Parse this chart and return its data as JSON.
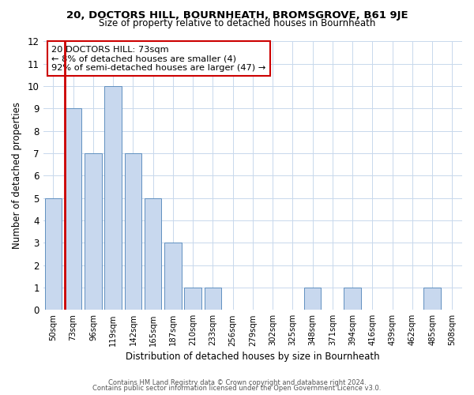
{
  "title": "20, DOCTORS HILL, BOURNHEATH, BROMSGROVE, B61 9JE",
  "subtitle": "Size of property relative to detached houses in Bournheath",
  "xlabel": "Distribution of detached houses by size in Bournheath",
  "ylabel": "Number of detached properties",
  "bar_labels": [
    "50sqm",
    "73sqm",
    "96sqm",
    "119sqm",
    "142sqm",
    "165sqm",
    "187sqm",
    "210sqm",
    "233sqm",
    "256sqm",
    "279sqm",
    "302sqm",
    "325sqm",
    "348sqm",
    "371sqm",
    "394sqm",
    "416sqm",
    "439sqm",
    "462sqm",
    "485sqm",
    "508sqm"
  ],
  "bar_values": [
    5,
    9,
    7,
    10,
    7,
    5,
    3,
    1,
    1,
    0,
    0,
    0,
    0,
    1,
    0,
    1,
    0,
    0,
    0,
    1,
    0
  ],
  "highlight_index": 1,
  "red_line_color": "#cc0000",
  "bar_fill_color": "#c8d8ee",
  "bar_edge_color": "#6090c0",
  "annotation_title": "20 DOCTORS HILL: 73sqm",
  "annotation_line1": "← 8% of detached houses are smaller (4)",
  "annotation_line2": "92% of semi-detached houses are larger (47) →",
  "ylim": [
    0,
    12
  ],
  "yticks": [
    0,
    1,
    2,
    3,
    4,
    5,
    6,
    7,
    8,
    9,
    10,
    11,
    12
  ],
  "footer1": "Contains HM Land Registry data © Crown copyright and database right 2024.",
  "footer2": "Contains public sector information licensed under the Open Government Licence v3.0.",
  "bg_color": "#ffffff",
  "grid_color": "#c8d8ec"
}
